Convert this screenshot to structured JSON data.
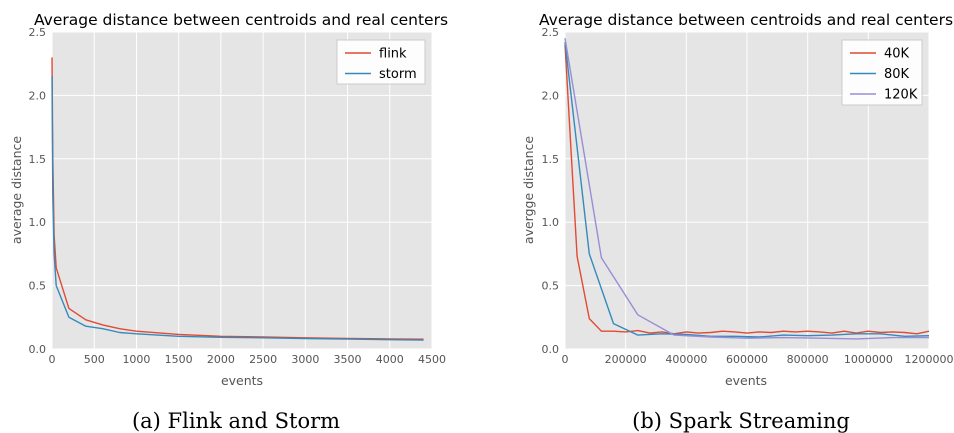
{
  "chart_data": [
    {
      "type": "line",
      "title": "Average distance between centroids and real centers",
      "xlabel": "events",
      "ylabel": "average distance",
      "xlim": [
        0,
        4500
      ],
      "ylim": [
        0,
        2.5
      ],
      "xticks": [
        "0",
        "500",
        "1000",
        "1500",
        "2000",
        "2500",
        "3000",
        "3500",
        "4000",
        "4500"
      ],
      "yticks": [
        "0.0",
        "0.5",
        "1.0",
        "1.5",
        "2.0",
        "2.5"
      ],
      "grid": true,
      "legend_position": "top-right",
      "series": [
        {
          "name": "flink",
          "color": "#e24a33",
          "x": [
            0,
            10,
            25,
            50,
            200,
            400,
            600,
            800,
            1000,
            1500,
            2000,
            2500,
            3000,
            3500,
            4000,
            4400
          ],
          "y": [
            2.3,
            1.5,
            0.9,
            0.64,
            0.32,
            0.23,
            0.19,
            0.16,
            0.14,
            0.115,
            0.1,
            0.095,
            0.088,
            0.083,
            0.08,
            0.077
          ]
        },
        {
          "name": "storm",
          "color": "#348abd",
          "x": [
            0,
            10,
            25,
            50,
            200,
            400,
            600,
            800,
            1000,
            1500,
            2000,
            2500,
            3000,
            3500,
            4000,
            4400
          ],
          "y": [
            2.15,
            1.2,
            0.75,
            0.5,
            0.25,
            0.18,
            0.16,
            0.13,
            0.12,
            0.1,
            0.092,
            0.088,
            0.082,
            0.078,
            0.073,
            0.07
          ]
        }
      ],
      "caption": "(a) Flink and Storm"
    },
    {
      "type": "line",
      "title": "Average distance between centroids and real centers",
      "xlabel": "events",
      "ylabel": "avergge distance",
      "xlim": [
        0,
        1200000
      ],
      "ylim": [
        0,
        2.5
      ],
      "xticks": [
        "0",
        "200000",
        "400000",
        "600000",
        "800000",
        "1000000",
        "1200000"
      ],
      "yticks": [
        "0.0",
        "0.5",
        "1.0",
        "1.5",
        "2.0",
        "2.5"
      ],
      "grid": true,
      "legend_position": "top-right",
      "series": [
        {
          "name": "40K",
          "color": "#e24a33",
          "x": [
            0,
            40000,
            80000,
            120000,
            160000,
            200000,
            240000,
            280000,
            320000,
            360000,
            400000,
            440000,
            480000,
            520000,
            560000,
            600000,
            640000,
            680000,
            720000,
            760000,
            800000,
            840000,
            880000,
            920000,
            960000,
            1000000,
            1040000,
            1080000,
            1120000,
            1160000,
            1200000
          ],
          "y": [
            2.4,
            0.73,
            0.24,
            0.14,
            0.14,
            0.135,
            0.145,
            0.125,
            0.135,
            0.12,
            0.135,
            0.125,
            0.13,
            0.14,
            0.135,
            0.125,
            0.135,
            0.13,
            0.14,
            0.135,
            0.14,
            0.135,
            0.125,
            0.14,
            0.125,
            0.14,
            0.13,
            0.135,
            0.13,
            0.12,
            0.14
          ]
        },
        {
          "name": "80K",
          "color": "#348abd",
          "x": [
            0,
            80000,
            160000,
            240000,
            320000,
            400000,
            480000,
            560000,
            640000,
            720000,
            800000,
            880000,
            960000,
            1040000,
            1120000,
            1200000
          ],
          "y": [
            2.42,
            0.75,
            0.2,
            0.11,
            0.12,
            0.115,
            0.1,
            0.1,
            0.095,
            0.11,
            0.105,
            0.11,
            0.12,
            0.12,
            0.1,
            0.105
          ]
        },
        {
          "name": "120K",
          "color": "#988ed5",
          "x": [
            0,
            120000,
            240000,
            360000,
            480000,
            600000,
            720000,
            840000,
            960000,
            1080000,
            1200000
          ],
          "y": [
            2.45,
            0.72,
            0.27,
            0.11,
            0.095,
            0.085,
            0.09,
            0.085,
            0.08,
            0.09,
            0.09
          ]
        }
      ],
      "caption": "(b) Spark Streaming"
    }
  ]
}
